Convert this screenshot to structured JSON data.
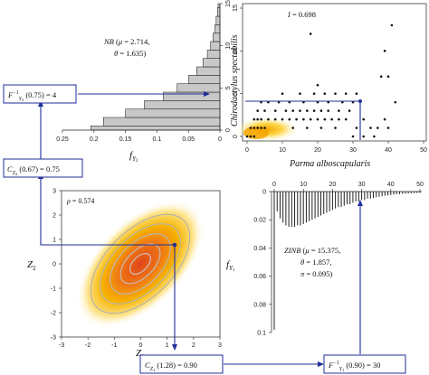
{
  "colors": {
    "accent": "#1f2f9a",
    "bar_fill": "#c8c8c8",
    "heat_core": "#e0451a",
    "heat_mid": "#f7b500",
    "heat_edge": "#fff3b0",
    "contour": "#b8b8b8"
  },
  "labels": {
    "inv_y2": "F_{Y_2}^{-1}(0.75) = 4",
    "c_z2": "C_{Z_2}(0.67) = 0.75",
    "c_z1": "C_{Z_1}(1.28) = 0.90",
    "inv_y1": "F_{Y_1}^{-1}(0.90) = 30"
  },
  "chart_data": [
    {
      "id": "nb-marginal",
      "type": "bar",
      "orientation": "horizontal",
      "annotation": "NB (μ = 2.714, θ = 1.635)",
      "xlabel": "f_{Y_2}",
      "xlim": [
        0.25,
        0
      ],
      "ylim": [
        0,
        15
      ],
      "xticks": [
        "0.25",
        "0.2",
        "0.15",
        "0.1",
        "0.05",
        "0"
      ],
      "yticks": [
        "0",
        "5",
        "10",
        "15"
      ],
      "categories": [
        0,
        1,
        2,
        3,
        4,
        5,
        6,
        7,
        8,
        9,
        10,
        11,
        12,
        13,
        14,
        15
      ],
      "values": [
        0.205,
        0.185,
        0.15,
        0.12,
        0.09,
        0.068,
        0.05,
        0.037,
        0.027,
        0.02,
        0.015,
        0.011,
        0.008,
        0.006,
        0.004,
        0.003
      ]
    },
    {
      "id": "joint-scatter",
      "type": "scatter",
      "annotation": "I = 0.698",
      "xlabel": "Parma alboscapularis",
      "ylabel": "Chirodactylus spectabilis",
      "xlim": [
        0,
        50
      ],
      "ylim": [
        0,
        15
      ],
      "xticks": [
        "0",
        "10",
        "20",
        "30",
        "40",
        "50"
      ],
      "yticks": [
        "0",
        "5",
        "10",
        "15"
      ],
      "points": [
        [
          0,
          0
        ],
        [
          1,
          0
        ],
        [
          2,
          0
        ],
        [
          1,
          1
        ],
        [
          2,
          1
        ],
        [
          3,
          1
        ],
        [
          4,
          1
        ],
        [
          5,
          1
        ],
        [
          2,
          2
        ],
        [
          3,
          2
        ],
        [
          4,
          2
        ],
        [
          6,
          2
        ],
        [
          8,
          2
        ],
        [
          10,
          2
        ],
        [
          12,
          2
        ],
        [
          14,
          2
        ],
        [
          16,
          2
        ],
        [
          18,
          2
        ],
        [
          20,
          2
        ],
        [
          22,
          2
        ],
        [
          24,
          2
        ],
        [
          26,
          2
        ],
        [
          28,
          2
        ],
        [
          3,
          3
        ],
        [
          5,
          3
        ],
        [
          8,
          3
        ],
        [
          11,
          3
        ],
        [
          13,
          3
        ],
        [
          15,
          3
        ],
        [
          17,
          3
        ],
        [
          19,
          3
        ],
        [
          21,
          3
        ],
        [
          23,
          3
        ],
        [
          26,
          3
        ],
        [
          29,
          3
        ],
        [
          4,
          4
        ],
        [
          6,
          4
        ],
        [
          9,
          4
        ],
        [
          12,
          4
        ],
        [
          16,
          4
        ],
        [
          20,
          4
        ],
        [
          23,
          4
        ],
        [
          27,
          4
        ],
        [
          30,
          4
        ],
        [
          10,
          5
        ],
        [
          15,
          5
        ],
        [
          19,
          5
        ],
        [
          22,
          5
        ],
        [
          25,
          5
        ],
        [
          28,
          5
        ],
        [
          13,
          1
        ],
        [
          17,
          1
        ],
        [
          21,
          1
        ],
        [
          25,
          1
        ],
        [
          31,
          1
        ],
        [
          33,
          2
        ],
        [
          35,
          1
        ],
        [
          37,
          1
        ],
        [
          39,
          2
        ],
        [
          40,
          1
        ],
        [
          20,
          6
        ],
        [
          31,
          5
        ],
        [
          42,
          4
        ],
        [
          18,
          12
        ],
        [
          38,
          7
        ],
        [
          40,
          7
        ],
        [
          39,
          10
        ],
        [
          41,
          13
        ],
        [
          30,
          0
        ],
        [
          33,
          0
        ],
        [
          36,
          0
        ]
      ]
    },
    {
      "id": "gaussian-copula",
      "type": "heatmap",
      "annotation": "ρ = 0.574",
      "xlabel": "Z_1",
      "ylabel": "Z_2",
      "xlim": [
        -3,
        3
      ],
      "ylim": [
        -3,
        3
      ],
      "xticks": [
        "-3",
        "-2",
        "-1",
        "0",
        "1",
        "2",
        "3"
      ],
      "yticks": [
        "-3",
        "-2",
        "-1",
        "0",
        "1",
        "2",
        "3"
      ],
      "rho": 0.574,
      "marked_point": [
        1.28,
        0.67
      ]
    },
    {
      "id": "zinb-marginal",
      "type": "bar",
      "orientation": "vertical-down",
      "annotation_lines": [
        "ZINB (μ = 15.375,",
        "θ = 1.857,",
        "π = 0.095)"
      ],
      "ylabel": "f_{Y_1}",
      "xlim": [
        0,
        50
      ],
      "ylim": [
        0,
        0.1
      ],
      "xticks": [
        "0",
        "10",
        "20",
        "30",
        "40",
        "50"
      ],
      "yticks": [
        "0",
        "0.02",
        "0.04",
        "0.06",
        "0.08",
        "0.1"
      ],
      "values": [
        0.098,
        0.014,
        0.019,
        0.022,
        0.024,
        0.025,
        0.025,
        0.025,
        0.024,
        0.024,
        0.023,
        0.022,
        0.021,
        0.02,
        0.019,
        0.018,
        0.017,
        0.016,
        0.015,
        0.014,
        0.013,
        0.012,
        0.011,
        0.011,
        0.01,
        0.009,
        0.009,
        0.008,
        0.007,
        0.007,
        0.006,
        0.006,
        0.005,
        0.005,
        0.0045,
        0.004,
        0.0037,
        0.0033,
        0.003,
        0.0027,
        0.0025,
        0.0022,
        0.002,
        0.0018,
        0.0016,
        0.0015,
        0.0013,
        0.0012,
        0.0011,
        0.001,
        0.0009
      ]
    }
  ]
}
